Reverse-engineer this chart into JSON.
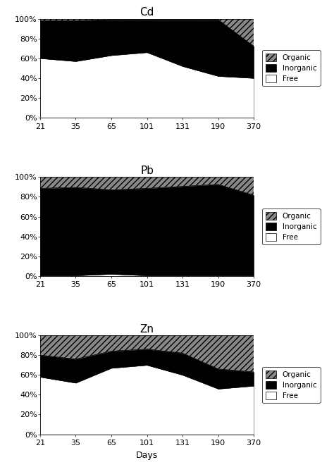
{
  "days": [
    21,
    35,
    65,
    101,
    131,
    190,
    370
  ],
  "Cd": {
    "free": [
      0.6,
      0.57,
      0.63,
      0.66,
      0.52,
      0.42,
      0.4
    ],
    "inorganic": [
      0.38,
      0.41,
      0.36,
      0.33,
      0.47,
      0.57,
      0.32
    ],
    "organic": [
      0.02,
      0.02,
      0.01,
      0.01,
      0.01,
      0.01,
      0.28
    ]
  },
  "Pb": {
    "free": [
      0.005,
      0.005,
      0.02,
      0.005,
      0.005,
      0.005,
      0.005
    ],
    "inorganic": [
      0.88,
      0.89,
      0.85,
      0.88,
      0.9,
      0.92,
      0.81
    ],
    "organic": [
      0.115,
      0.105,
      0.13,
      0.115,
      0.095,
      0.075,
      0.185
    ]
  },
  "Zn": {
    "free": [
      0.58,
      0.52,
      0.67,
      0.7,
      0.6,
      0.46,
      0.49
    ],
    "inorganic": [
      0.22,
      0.24,
      0.17,
      0.16,
      0.22,
      0.2,
      0.14
    ],
    "organic": [
      0.2,
      0.24,
      0.16,
      0.14,
      0.18,
      0.34,
      0.37
    ]
  },
  "titles": [
    "Cd",
    "Pb",
    "Zn"
  ],
  "xlabel": "Days",
  "yticks": [
    0.0,
    0.2,
    0.4,
    0.6,
    0.8,
    1.0
  ],
  "yticklabels": [
    "0%",
    "20%",
    "40%",
    "60%",
    "80%",
    "100%"
  ],
  "legend_labels": [
    "Organic",
    "Inorganic",
    "Free"
  ],
  "free_color": "#ffffff",
  "inorganic_color": "#000000",
  "organic_facecolor": "#888888",
  "hatch_organic": "////"
}
